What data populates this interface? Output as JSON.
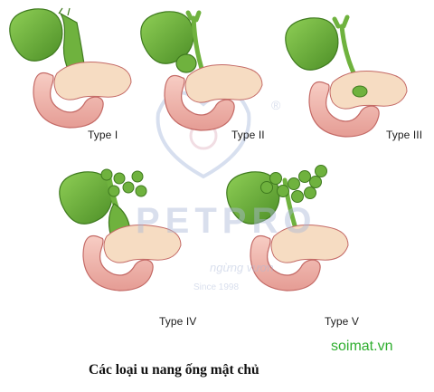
{
  "panels": [
    {
      "label": "Type I"
    },
    {
      "label": "Type II"
    },
    {
      "label": "Type III"
    },
    {
      "label": "Type IV"
    },
    {
      "label": "Type V"
    }
  ],
  "caption": "Các loại u nang ống mật chủ",
  "site": "soimat.vn",
  "watermark": {
    "brand": "PETPRO",
    "registered": "®",
    "slogan": "ngừng vươn",
    "since": "Since 1998"
  },
  "colors": {
    "gallbladder": "#6fb23e",
    "gallbladder_dark": "#3f7a1f",
    "duodenum": "#f2b9b0",
    "duodenum_dark": "#c46a66",
    "pancreas": "#f6dcc2",
    "watermark": "#b3c4e0"
  }
}
